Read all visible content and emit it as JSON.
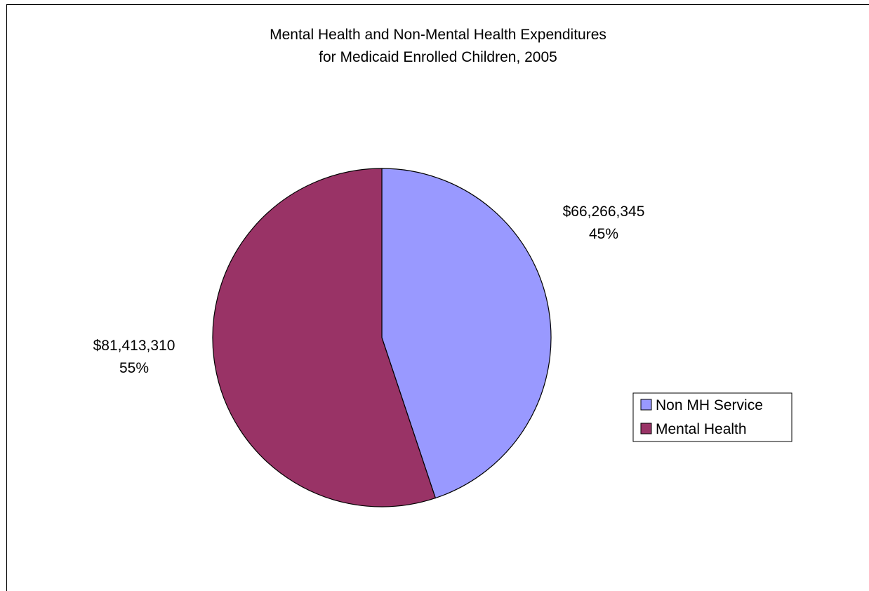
{
  "chart_data": {
    "type": "pie",
    "title_lines": [
      "Mental Health and Non-Mental Health Expenditures",
      "for Medicaid Enrolled Children, 2005"
    ],
    "legend_position": "right",
    "slices": [
      {
        "name": "Non MH Service",
        "value": 66266345,
        "value_label": "$66,266,345",
        "percent_label": "45%",
        "color": "#9999ff"
      },
      {
        "name": "Mental Health",
        "value": 81413310,
        "value_label": "$81,413,310",
        "percent_label": "55%",
        "color": "#993366"
      }
    ]
  }
}
